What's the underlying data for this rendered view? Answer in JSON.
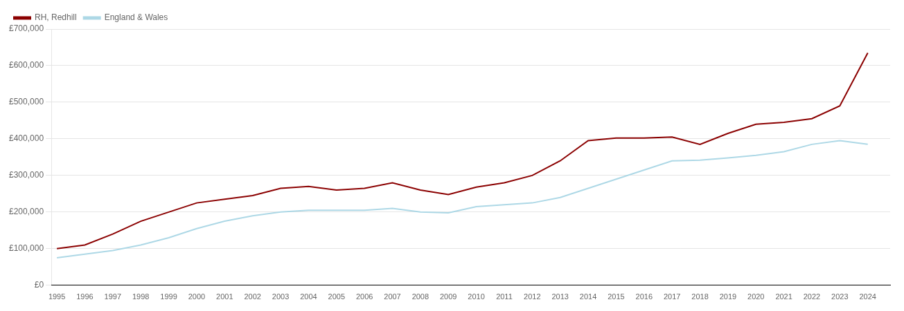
{
  "chart_data": {
    "type": "line",
    "x": [
      1995,
      1996,
      1997,
      1998,
      1999,
      2000,
      2001,
      2002,
      2003,
      2004,
      2005,
      2006,
      2007,
      2008,
      2009,
      2010,
      2011,
      2012,
      2013,
      2014,
      2015,
      2016,
      2017,
      2018,
      2019,
      2020,
      2021,
      2022,
      2023,
      2024
    ],
    "series": [
      {
        "name": "RH, Redhill",
        "color": "#8B0000",
        "values": [
          100000,
          110000,
          140000,
          175000,
          200000,
          225000,
          235000,
          245000,
          265000,
          270000,
          260000,
          265000,
          280000,
          260000,
          248000,
          268000,
          280000,
          300000,
          340000,
          395000,
          402000,
          402000,
          405000,
          385000,
          415000,
          440000,
          445000,
          455000,
          490000,
          635000
        ]
      },
      {
        "name": "England & Wales",
        "color": "#ADD8E6",
        "values": [
          75000,
          85000,
          95000,
          110000,
          130000,
          155000,
          175000,
          190000,
          200000,
          205000,
          205000,
          205000,
          210000,
          200000,
          198000,
          215000,
          220000,
          225000,
          240000,
          265000,
          290000,
          315000,
          340000,
          342000,
          348000,
          355000,
          365000,
          385000,
          395000,
          385000
        ]
      }
    ],
    "xlim": [
      1994.8,
      2024.8
    ],
    "xticks": [
      1995,
      1996,
      1997,
      1998,
      1999,
      2000,
      2001,
      2002,
      2003,
      2004,
      2005,
      2006,
      2007,
      2008,
      2009,
      2010,
      2011,
      2012,
      2013,
      2014,
      2015,
      2016,
      2017,
      2018,
      2019,
      2020,
      2021,
      2022,
      2023,
      2024
    ],
    "ylim": [
      0,
      700000
    ],
    "yticks": [
      {
        "value": 0,
        "label": "£0"
      },
      {
        "value": 100000,
        "label": "£100,000"
      },
      {
        "value": 200000,
        "label": "£200,000"
      },
      {
        "value": 300000,
        "label": "£300,000"
      },
      {
        "value": 400000,
        "label": "£400,000"
      },
      {
        "value": 500000,
        "label": "£500,000"
      },
      {
        "value": 600000,
        "label": "£600,000"
      },
      {
        "value": 700000,
        "label": "£700,000"
      }
    ],
    "grid": "y",
    "legend": "upper left"
  }
}
